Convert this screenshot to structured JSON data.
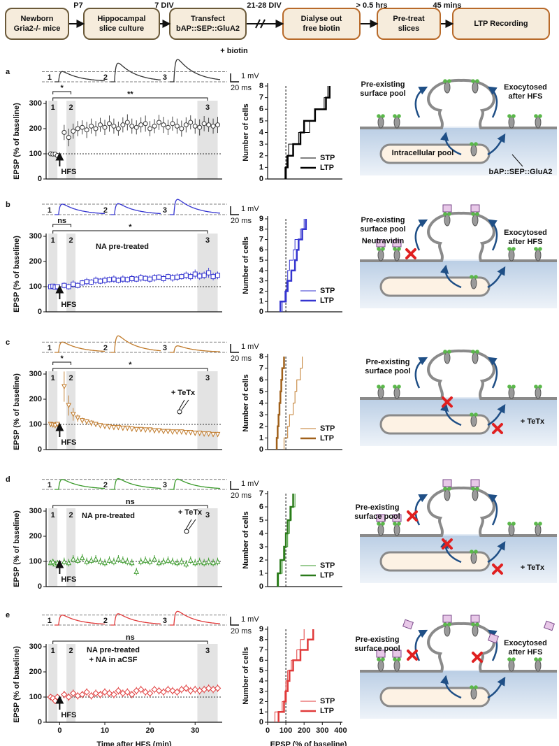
{
  "flow": {
    "steps": [
      [
        "Newborn",
        "Gria2-/- mice"
      ],
      [
        "Hippocampal",
        "slice culture"
      ],
      [
        "Transfect",
        "bAP::SEP::GluA2"
      ],
      [
        "Dialyse out",
        "free biotin"
      ],
      [
        "Pre-treat",
        "slices"
      ],
      [
        "LTP Recording"
      ]
    ],
    "arrows": [
      "P7",
      "7 DIV",
      "21-28 DIV",
      "> 0.5 hrs",
      "45 mins"
    ],
    "note": "+ biotin"
  },
  "panels": [
    {
      "letter": "a",
      "diagram": [
        [
          "Pre-existing",
          "surface pool"
        ],
        [
          "Exocytosed",
          "after HFS"
        ],
        [
          "Intracellular pool"
        ],
        [
          "bAP::SEP::GluA2"
        ]
      ]
    },
    {
      "letter": "b",
      "diagram": [
        [
          "Pre-existing",
          "surface pool"
        ],
        [
          "Neutravidin"
        ],
        [
          "Exocytosed",
          "after HFS"
        ]
      ]
    },
    {
      "letter": "c",
      "diagram": [
        [
          "Pre-existing",
          "surface pool"
        ],
        [
          "+ TeTx"
        ]
      ]
    },
    {
      "letter": "d",
      "diagram": [
        [
          "Pre-existing",
          "surface pool"
        ],
        [
          "+ TeTx"
        ]
      ]
    },
    {
      "letter": "e",
      "diagram": [
        [
          "Pre-existing",
          "surface pool"
        ],
        [
          "Exocytosed",
          "after HFS"
        ]
      ]
    }
  ],
  "chart_data": [
    {
      "type": "scatter",
      "marker": "circle",
      "color": "#333333",
      "x": [
        -2,
        -1.5,
        -1,
        -0.5,
        1,
        2,
        3,
        4,
        5,
        6,
        7,
        8,
        9,
        10,
        11,
        12,
        13,
        14,
        15,
        16,
        17,
        18,
        19,
        20,
        21,
        22,
        23,
        24,
        25,
        26,
        27,
        28,
        29,
        30,
        31,
        32,
        33,
        34,
        35
      ],
      "values": [
        100,
        99,
        99,
        93,
        185,
        165,
        190,
        200,
        205,
        195,
        210,
        200,
        215,
        205,
        220,
        210,
        200,
        215,
        225,
        210,
        205,
        215,
        220,
        200,
        210,
        225,
        215,
        205,
        220,
        210,
        200,
        215,
        225,
        210,
        205,
        220,
        215,
        210,
        215
      ],
      "errors": [
        4,
        4,
        4,
        6,
        30,
        35,
        30,
        30,
        28,
        32,
        30,
        30,
        28,
        30,
        32,
        30,
        28,
        30,
        32,
        30,
        28,
        30,
        32,
        30,
        28,
        30,
        32,
        30,
        28,
        30,
        32,
        30,
        28,
        30,
        32,
        30,
        28,
        30,
        32
      ],
      "xlim": [
        -3,
        36
      ],
      "ylim": [
        0,
        300
      ],
      "yticks": [
        0,
        100,
        200,
        300
      ],
      "ylabel": "EPSP (% of baseline)",
      "ref_y": 100,
      "windows": [
        {
          "label": "1",
          "range": [
            -2.5,
            -0.5
          ]
        },
        {
          "label": "2",
          "range": [
            1.5,
            3.5
          ]
        },
        {
          "label": "3",
          "range": [
            30.5,
            35
          ]
        }
      ],
      "stp_sig": "*",
      "ltp_sig": "**",
      "hfs": "HFS",
      "hfs_at": 0,
      "annotations": [],
      "scale_y": "1 mV",
      "scale_x": "20 ms"
    },
    {
      "type": "step",
      "xlim": [
        0,
        410
      ],
      "ylim": [
        0,
        8
      ],
      "yticks": [
        0,
        1,
        2,
        3,
        4,
        5,
        6,
        7,
        8
      ],
      "ylabel": "Number of cells",
      "ref_x": 100,
      "series": [
        {
          "name": "STP",
          "color": "#000000",
          "x": [
            95,
            105,
            115,
            170,
            230,
            260,
            310,
            330
          ],
          "values": [
            1,
            2,
            3,
            4,
            5,
            6,
            7,
            8
          ]
        },
        {
          "name": "LTP",
          "color": "#000000",
          "x": [
            100,
            110,
            140,
            180,
            200,
            260,
            320,
            340
          ],
          "values": [
            1,
            2,
            3,
            4,
            5,
            6,
            7,
            8
          ]
        }
      ]
    },
    {
      "type": "scatter",
      "marker": "square",
      "color": "#3535d0",
      "x": [
        -2,
        -1.5,
        -1,
        -0.5,
        1,
        2,
        3,
        4,
        5,
        6,
        7,
        8,
        9,
        10,
        11,
        12,
        13,
        14,
        15,
        16,
        17,
        18,
        19,
        20,
        21,
        22,
        23,
        24,
        25,
        26,
        27,
        28,
        29,
        30,
        31,
        32,
        33,
        34,
        35
      ],
      "values": [
        100,
        102,
        98,
        100,
        105,
        100,
        110,
        105,
        115,
        120,
        118,
        125,
        122,
        125,
        128,
        130,
        125,
        130,
        128,
        132,
        130,
        135,
        133,
        130,
        135,
        138,
        132,
        140,
        135,
        138,
        140,
        145,
        140,
        150,
        142,
        145,
        155,
        140,
        145
      ],
      "errors": [
        8,
        8,
        8,
        8,
        12,
        12,
        15,
        12,
        12,
        15,
        12,
        15,
        12,
        15,
        12,
        15,
        12,
        15,
        12,
        15,
        12,
        15,
        12,
        15,
        15,
        12,
        15,
        12,
        15,
        15,
        12,
        15,
        15,
        18,
        15,
        15,
        20,
        15,
        15
      ],
      "xlim": [
        -3,
        36
      ],
      "ylim": [
        0,
        300
      ],
      "yticks": [
        0,
        100,
        200,
        300
      ],
      "ylabel": "EPSP (% of baseline)",
      "ref_y": 100,
      "windows": [
        {
          "label": "1",
          "range": [
            -2.5,
            -0.5
          ]
        },
        {
          "label": "2",
          "range": [
            1.5,
            3.5
          ]
        },
        {
          "label": "3",
          "range": [
            30.5,
            35
          ]
        }
      ],
      "stp_sig": "ns",
      "ltp_sig": "*",
      "hfs": "HFS",
      "hfs_at": 0,
      "annotations": [
        "NA pre-treated"
      ],
      "scale_y": "1 mV",
      "scale_x": "20 ms"
    },
    {
      "type": "step",
      "xlim": [
        0,
        410
      ],
      "ylim": [
        0,
        9
      ],
      "yticks": [
        0,
        1,
        2,
        3,
        4,
        5,
        6,
        7,
        8,
        9
      ],
      "ylabel": "Number of cells",
      "ref_x": 100,
      "series": [
        {
          "name": "STP",
          "color": "#3535d0",
          "x": [
            80,
            95,
            105,
            110,
            120,
            140,
            150,
            180,
            200
          ],
          "values": [
            1,
            2,
            3,
            4,
            5,
            6,
            7,
            8,
            9
          ]
        },
        {
          "name": "LTP",
          "color": "#3535d0",
          "x": [
            70,
            100,
            110,
            130,
            150,
            160,
            170,
            190,
            210
          ],
          "values": [
            1,
            2,
            3,
            4,
            5,
            6,
            7,
            8,
            9
          ]
        }
      ]
    },
    {
      "type": "scatter",
      "marker": "tri-down",
      "color": "#c07a2a",
      "x": [
        -2,
        -1.5,
        -1,
        -0.5,
        1,
        2,
        3,
        4,
        5,
        6,
        7,
        8,
        9,
        10,
        11,
        12,
        13,
        14,
        15,
        16,
        17,
        18,
        19,
        20,
        21,
        22,
        23,
        24,
        25,
        26,
        27,
        28,
        29,
        30,
        31,
        32,
        33,
        34,
        35
      ],
      "values": [
        100,
        98,
        95,
        100,
        250,
        175,
        140,
        125,
        115,
        110,
        105,
        100,
        95,
        92,
        90,
        88,
        88,
        85,
        85,
        82,
        80,
        80,
        78,
        78,
        75,
        75,
        72,
        72,
        70,
        70,
        70,
        68,
        68,
        65,
        65,
        62,
        62,
        60,
        60
      ],
      "errors": [
        10,
        10,
        10,
        10,
        60,
        40,
        25,
        15,
        12,
        12,
        12,
        10,
        10,
        10,
        10,
        10,
        10,
        10,
        10,
        10,
        10,
        10,
        10,
        10,
        10,
        10,
        10,
        10,
        10,
        10,
        10,
        10,
        10,
        10,
        10,
        10,
        10,
        10,
        10
      ],
      "xlim": [
        -3,
        36
      ],
      "ylim": [
        0,
        300
      ],
      "yticks": [
        0,
        100,
        200,
        300
      ],
      "ylabel": "EPSP (% of baseline)",
      "ref_y": 100,
      "windows": [
        {
          "label": "1",
          "range": [
            -2.5,
            -0.5
          ]
        },
        {
          "label": "2",
          "range": [
            1.5,
            3.5
          ]
        },
        {
          "label": "3",
          "range": [
            30.5,
            35
          ]
        }
      ],
      "stp_sig": "*",
      "ltp_sig": "*",
      "hfs": "HFS",
      "hfs_at": 0,
      "annotations": [
        "+ TeTx"
      ],
      "scale_y": "1 mV",
      "scale_x": "20 ms"
    },
    {
      "type": "step",
      "xlim": [
        0,
        410
      ],
      "ylim": [
        0,
        8
      ],
      "yticks": [
        0,
        1,
        2,
        3,
        4,
        5,
        6,
        7,
        8
      ],
      "ylabel": "Number of cells",
      "ref_x": 100,
      "series": [
        {
          "name": "STP",
          "color": "#c07a2a",
          "x": [
            90,
            110,
            120,
            140,
            150,
            160,
            180,
            190
          ],
          "values": [
            1,
            2,
            3,
            4,
            5,
            6,
            7,
            8
          ]
        },
        {
          "name": "LTP",
          "color": "#a0601a",
          "x": [
            50,
            55,
            60,
            65,
            70,
            75,
            80,
            90
          ],
          "values": [
            1,
            2,
            3,
            4,
            5,
            6,
            7,
            8
          ]
        }
      ]
    },
    {
      "type": "scatter",
      "marker": "tri-up",
      "color": "#3a9a2a",
      "x": [
        -2,
        -1.5,
        -1,
        -0.5,
        1,
        2,
        3,
        4,
        5,
        6,
        7,
        8,
        9,
        10,
        11,
        12,
        13,
        14,
        15,
        16,
        17,
        18,
        19,
        20,
        21,
        22,
        23,
        24,
        25,
        26,
        27,
        28,
        29,
        30,
        31,
        32,
        33,
        34,
        35
      ],
      "values": [
        95,
        100,
        90,
        95,
        100,
        95,
        110,
        105,
        115,
        100,
        105,
        110,
        100,
        95,
        105,
        100,
        110,
        105,
        100,
        95,
        60,
        100,
        105,
        100,
        110,
        95,
        100,
        105,
        100,
        95,
        100,
        90,
        105,
        95,
        100,
        95,
        100,
        95,
        100
      ],
      "errors": [
        10,
        10,
        10,
        10,
        15,
        15,
        15,
        15,
        15,
        15,
        15,
        15,
        15,
        15,
        15,
        15,
        15,
        15,
        15,
        15,
        15,
        15,
        15,
        15,
        15,
        15,
        15,
        15,
        15,
        15,
        15,
        15,
        15,
        15,
        15,
        15,
        15,
        15,
        15
      ],
      "xlim": [
        -3,
        36
      ],
      "ylim": [
        0,
        300
      ],
      "yticks": [
        0,
        100,
        200,
        300
      ],
      "ylabel": "EPSP (% of baseline)",
      "ref_y": 100,
      "windows": [
        {
          "label": "1",
          "range": [
            -2.5,
            -0.5
          ]
        },
        {
          "label": "2",
          "range": [
            1.5,
            3.5
          ]
        },
        {
          "label": "3",
          "range": [
            30.5,
            35
          ]
        }
      ],
      "ltp_sig": "ns",
      "hfs": "HFS",
      "hfs_at": 0,
      "annotations": [
        "NA pre-treated",
        "+ TeTx"
      ],
      "scale_y": "1 mV",
      "scale_x": "20 ms"
    },
    {
      "type": "step",
      "xlim": [
        0,
        410
      ],
      "ylim": [
        0,
        7
      ],
      "yticks": [
        0,
        1,
        2,
        3,
        4,
        5,
        6,
        7
      ],
      "ylabel": "Number of cells",
      "ref_x": 100,
      "series": [
        {
          "name": "STP",
          "color": "#3a9a2a",
          "x": [
            60,
            80,
            95,
            110,
            120,
            130,
            150
          ],
          "values": [
            1,
            2,
            3,
            4,
            5,
            6,
            7
          ]
        },
        {
          "name": "LTP",
          "color": "#2a7a1a",
          "x": [
            55,
            70,
            90,
            100,
            110,
            125,
            140
          ],
          "values": [
            1,
            2,
            3,
            4,
            5,
            6,
            7
          ]
        }
      ]
    },
    {
      "type": "scatter",
      "marker": "diamond",
      "color": "#e03a3a",
      "x": [
        -2,
        -1.5,
        -1,
        -0.5,
        1,
        2,
        3,
        4,
        5,
        6,
        7,
        8,
        9,
        10,
        11,
        12,
        13,
        14,
        15,
        16,
        17,
        18,
        19,
        20,
        21,
        22,
        23,
        24,
        25,
        26,
        27,
        28,
        29,
        30,
        31,
        32,
        33,
        34,
        35
      ],
      "values": [
        100,
        95,
        85,
        100,
        110,
        100,
        115,
        105,
        110,
        120,
        105,
        115,
        110,
        120,
        115,
        110,
        125,
        115,
        120,
        110,
        125,
        130,
        120,
        115,
        130,
        125,
        120,
        130,
        125,
        120,
        130,
        135,
        125,
        130,
        125,
        130,
        135,
        130,
        135
      ],
      "errors": [
        10,
        10,
        10,
        10,
        15,
        15,
        15,
        15,
        15,
        15,
        15,
        15,
        15,
        15,
        15,
        15,
        15,
        15,
        15,
        15,
        15,
        15,
        15,
        15,
        15,
        15,
        15,
        15,
        15,
        15,
        15,
        15,
        15,
        15,
        15,
        15,
        15,
        15,
        15
      ],
      "xlim": [
        -3,
        36
      ],
      "ylim": [
        0,
        300
      ],
      "yticks": [
        0,
        100,
        200,
        300
      ],
      "xticks": [
        0,
        10,
        20,
        30
      ],
      "xlabel": "Time after HFS (min)",
      "ylabel": "EPSP (% of baseline)",
      "ref_y": 100,
      "windows": [
        {
          "label": "1",
          "range": [
            -2.5,
            -0.5
          ]
        },
        {
          "label": "2",
          "range": [
            1.5,
            3.5
          ]
        },
        {
          "label": "3",
          "range": [
            30.5,
            35
          ]
        }
      ],
      "ltp_sig": "ns",
      "hfs": "HFS",
      "hfs_at": 0,
      "annotations": [
        "NA pre-treated",
        "+ NA in aCSF"
      ],
      "scale_y": "1 mV",
      "scale_x": "20 ms"
    },
    {
      "type": "step",
      "xlim": [
        0,
        410
      ],
      "ylim": [
        0,
        9
      ],
      "yticks": [
        0,
        1,
        2,
        3,
        4,
        5,
        6,
        7,
        8,
        9
      ],
      "xticks": [
        0,
        100,
        200,
        300,
        400
      ],
      "xlabel": "EPSP (% of baseline)",
      "ylabel": "Number of cells",
      "ref_x": 100,
      "series": [
        {
          "name": "STP",
          "color": "#e03a3a",
          "x": [
            40,
            80,
            95,
            100,
            110,
            130,
            160,
            180,
            200
          ],
          "values": [
            1,
            2,
            3,
            4,
            5,
            6,
            7,
            8,
            9
          ]
        },
        {
          "name": "LTP",
          "color": "#e03a3a",
          "x": [
            60,
            90,
            100,
            110,
            120,
            140,
            180,
            220,
            250
          ],
          "values": [
            1,
            2,
            3,
            4,
            5,
            6,
            7,
            8,
            9
          ]
        }
      ]
    }
  ]
}
